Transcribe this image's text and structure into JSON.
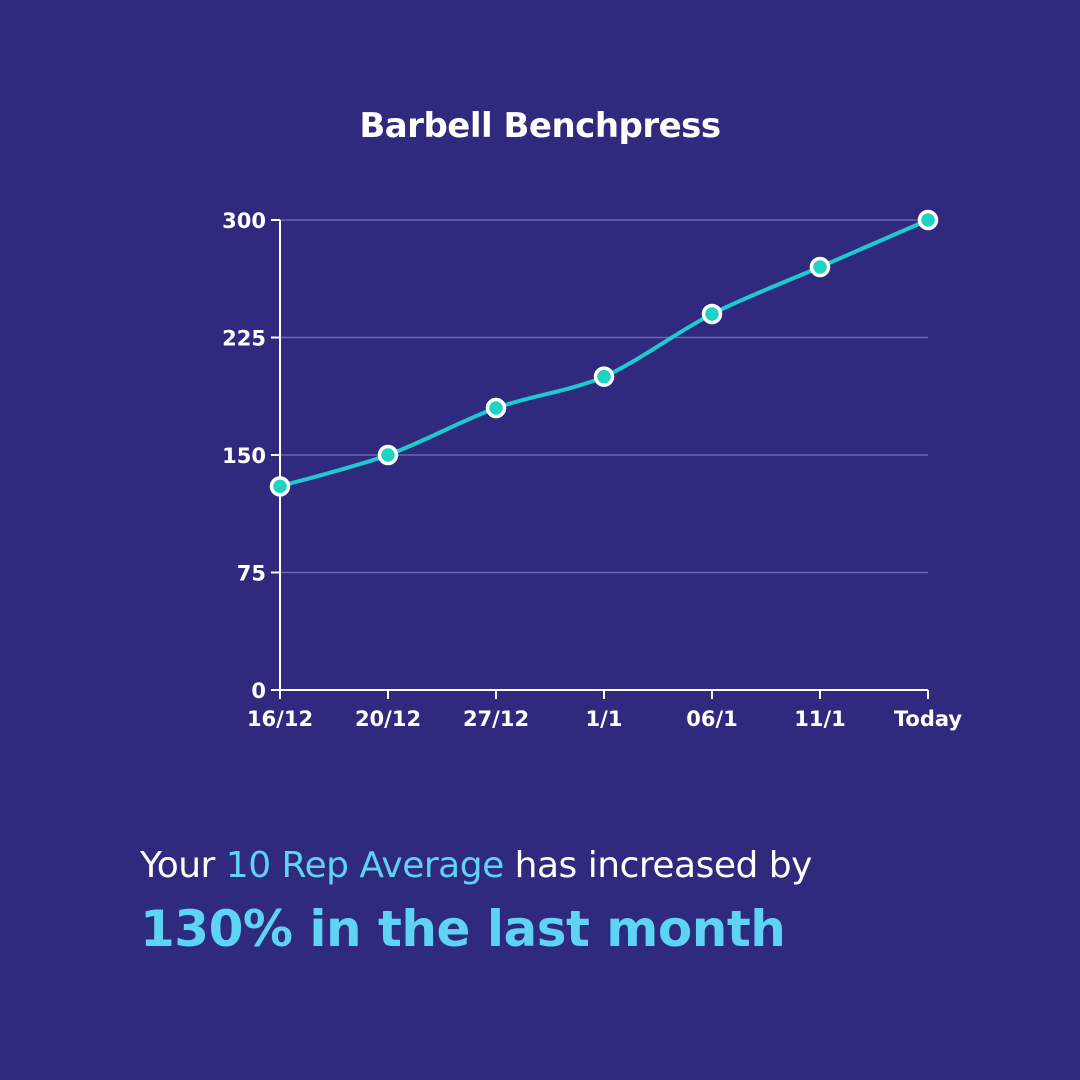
{
  "colors": {
    "background": "#302a7e",
    "line": "#1fc9d2",
    "point_fill": "#1fd3c4",
    "point_stroke": "#ffffff",
    "grid": "#6b66b0",
    "axis": "#ffffff",
    "highlight": "#5fd3f5"
  },
  "chart_data": {
    "type": "line",
    "title": "Barbell Benchpress",
    "xlabel": "",
    "ylabel": "",
    "categories": [
      "16/12",
      "20/12",
      "27/12",
      "1/1",
      "06/1",
      "11/1",
      "Today"
    ],
    "values": [
      130,
      150,
      180,
      200,
      240,
      270,
      300
    ],
    "yticks": [
      0,
      75,
      150,
      225,
      300
    ],
    "ylim": [
      0,
      300
    ],
    "grid": true,
    "legend": false
  },
  "summary": {
    "prefix": "Your ",
    "highlight": "10 Rep Average",
    "suffix": " has increased by",
    "headline": "130% in the last month"
  }
}
